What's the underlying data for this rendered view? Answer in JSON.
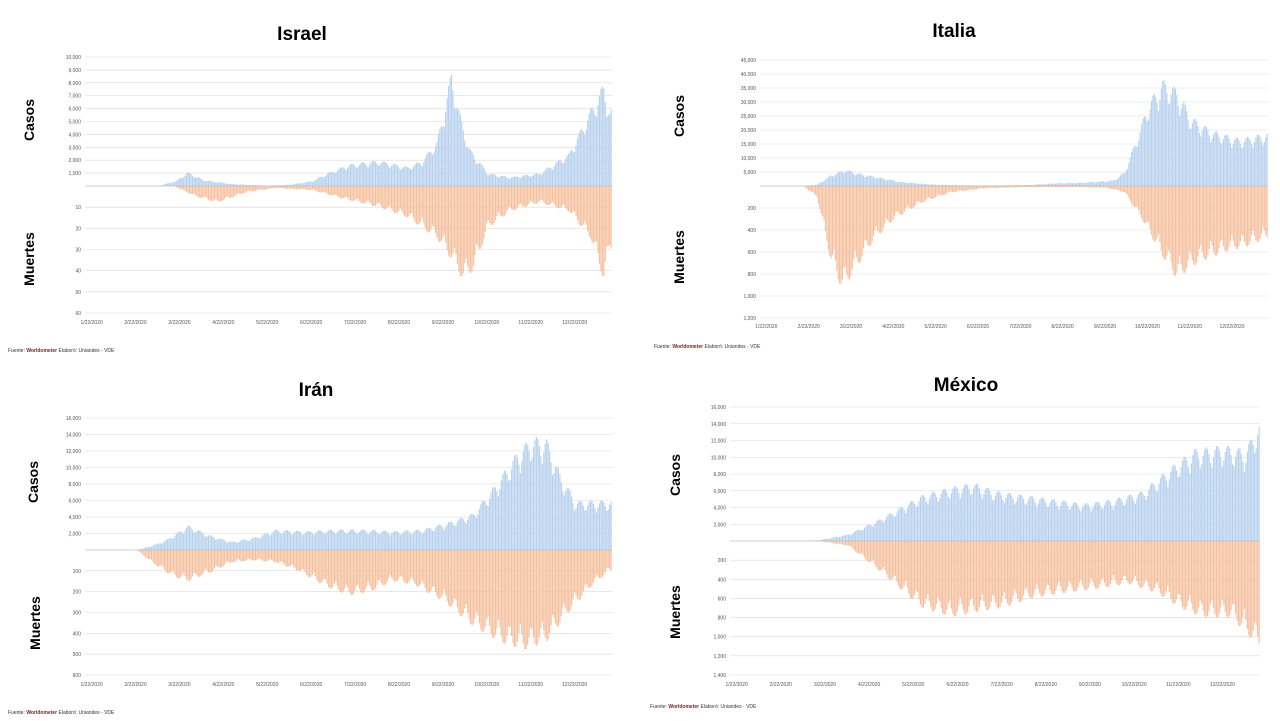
{
  "source": {
    "prefix": "Fuente:",
    "site": "Worldometer",
    "credit": "Elaboró: Uniandes - VDE"
  },
  "chart_data": [
    {
      "type": "bar",
      "title": "Israel",
      "ylabel_top": "Casos",
      "ylabel_bottom": "Muertes",
      "series": [
        {
          "name": "Casos"
        },
        {
          "name": "Muertes"
        }
      ],
      "x_ticks": [
        "1/22/2020",
        "2/22/2020",
        "3/22/2020",
        "4/22/2020",
        "5/22/2020",
        "6/22/2020",
        "7/22/2020",
        "8/22/2020",
        "9/22/2020",
        "10/22/2020",
        "11/22/2020",
        "12/22/2020"
      ],
      "cases_ticks": [
        "1,000",
        "2,000",
        "3,000",
        "4,000",
        "5,000",
        "6,000",
        "7,000",
        "8,000",
        "9,000",
        "10,000"
      ],
      "deaths_ticks": [
        "10",
        "20",
        "30",
        "40",
        "50",
        "60"
      ],
      "cases_max": 10000,
      "deaths_max": 60,
      "cases_keys": [
        [
          0,
          0
        ],
        [
          50,
          10
        ],
        [
          62,
          400
        ],
        [
          70,
          1100
        ],
        [
          80,
          500
        ],
        [
          100,
          150
        ],
        [
          125,
          30
        ],
        [
          140,
          100
        ],
        [
          155,
          400
        ],
        [
          165,
          1000
        ],
        [
          180,
          1700
        ],
        [
          200,
          2000
        ],
        [
          220,
          1500
        ],
        [
          230,
          2000
        ],
        [
          240,
          3500
        ],
        [
          245,
          6000
        ],
        [
          250,
          9000
        ],
        [
          255,
          6000
        ],
        [
          262,
          3000
        ],
        [
          275,
          1000
        ],
        [
          290,
          700
        ],
        [
          310,
          1000
        ],
        [
          330,
          2500
        ],
        [
          345,
          6000
        ],
        [
          354,
          8000
        ],
        [
          358,
          6000
        ]
      ],
      "deaths_keys": [
        [
          0,
          0
        ],
        [
          60,
          0
        ],
        [
          75,
          5
        ],
        [
          90,
          8
        ],
        [
          110,
          3
        ],
        [
          130,
          1
        ],
        [
          155,
          2
        ],
        [
          175,
          6
        ],
        [
          200,
          10
        ],
        [
          220,
          15
        ],
        [
          240,
          25
        ],
        [
          250,
          35
        ],
        [
          258,
          45
        ],
        [
          265,
          40
        ],
        [
          275,
          20
        ],
        [
          290,
          12
        ],
        [
          310,
          8
        ],
        [
          330,
          12
        ],
        [
          345,
          25
        ],
        [
          354,
          45
        ],
        [
          358,
          30
        ]
      ]
    },
    {
      "type": "bar",
      "title": "Italia",
      "ylabel_top": "Casos",
      "ylabel_bottom": "Muertes",
      "series": [
        {
          "name": "Casos"
        },
        {
          "name": "Muertes"
        }
      ],
      "x_ticks": [
        "1/22/2020",
        "2/22/2020",
        "3/22/2020",
        "4/22/2020",
        "5/22/2020",
        "6/22/2020",
        "7/22/2020",
        "8/22/2020",
        "9/22/2020",
        "10/22/2020",
        "11/22/2020",
        "12/22/2020"
      ],
      "cases_ticks": [
        "5,000",
        "10,000",
        "15,000",
        "20,000",
        "25,000",
        "30,000",
        "35,000",
        "40,000",
        "45,000"
      ],
      "deaths_ticks": [
        "200",
        "400",
        "600",
        "800",
        "1,000",
        "1,200"
      ],
      "cases_max": 45000,
      "deaths_max": 1200,
      "cases_keys": [
        [
          0,
          0
        ],
        [
          30,
          0
        ],
        [
          40,
          500
        ],
        [
          50,
          4000
        ],
        [
          60,
          6000
        ],
        [
          70,
          4500
        ],
        [
          85,
          3000
        ],
        [
          100,
          1500
        ],
        [
          120,
          600
        ],
        [
          140,
          300
        ],
        [
          160,
          200
        ],
        [
          190,
          400
        ],
        [
          210,
          1000
        ],
        [
          230,
          1300
        ],
        [
          250,
          2000
        ],
        [
          258,
          5000
        ],
        [
          265,
          15000
        ],
        [
          275,
          30000
        ],
        [
          285,
          38000
        ],
        [
          295,
          35000
        ],
        [
          305,
          25000
        ],
        [
          320,
          20000
        ],
        [
          340,
          17000
        ],
        [
          358,
          19000
        ]
      ],
      "deaths_keys": [
        [
          0,
          0
        ],
        [
          30,
          0
        ],
        [
          40,
          100
        ],
        [
          50,
          700
        ],
        [
          58,
          950
        ],
        [
          68,
          750
        ],
        [
          80,
          500
        ],
        [
          95,
          300
        ],
        [
          115,
          150
        ],
        [
          135,
          60
        ],
        [
          160,
          20
        ],
        [
          190,
          10
        ],
        [
          225,
          10
        ],
        [
          245,
          15
        ],
        [
          258,
          60
        ],
        [
          270,
          300
        ],
        [
          285,
          650
        ],
        [
          295,
          850
        ],
        [
          310,
          700
        ],
        [
          330,
          600
        ],
        [
          345,
          550
        ],
        [
          358,
          480
        ]
      ]
    },
    {
      "type": "bar",
      "title": "Irán",
      "ylabel_top": "Casos",
      "ylabel_bottom": "Muertes",
      "series": [
        {
          "name": "Casos"
        },
        {
          "name": "Muertes"
        }
      ],
      "x_ticks": [
        "1/22/2020",
        "2/22/2020",
        "3/22/2020",
        "4/22/2020",
        "5/22/2020",
        "6/22/2020",
        "7/22/2020",
        "8/22/2020",
        "9/22/2020",
        "10/22/2020",
        "11/22/2020",
        "12/22/2020"
      ],
      "cases_ticks": [
        "2,000",
        "4,000",
        "6,000",
        "8,000",
        "10,000",
        "12,000",
        "14,000",
        "16,000"
      ],
      "deaths_ticks": [
        "100",
        "200",
        "300",
        "400",
        "500",
        "600"
      ],
      "cases_max": 16000,
      "deaths_max": 600,
      "cases_keys": [
        [
          0,
          0
        ],
        [
          35,
          0
        ],
        [
          45,
          500
        ],
        [
          55,
          1200
        ],
        [
          70,
          3000
        ],
        [
          85,
          1800
        ],
        [
          100,
          1000
        ],
        [
          115,
          1500
        ],
        [
          130,
          2500
        ],
        [
          150,
          2300
        ],
        [
          170,
          2500
        ],
        [
          190,
          2500
        ],
        [
          210,
          2300
        ],
        [
          230,
          2500
        ],
        [
          250,
          3500
        ],
        [
          265,
          4500
        ],
        [
          280,
          8000
        ],
        [
          295,
          12000
        ],
        [
          305,
          13800
        ],
        [
          315,
          13500
        ],
        [
          325,
          9000
        ],
        [
          335,
          6000
        ],
        [
          350,
          6000
        ],
        [
          358,
          6000
        ]
      ],
      "deaths_keys": [
        [
          0,
          0
        ],
        [
          35,
          0
        ],
        [
          45,
          60
        ],
        [
          60,
          130
        ],
        [
          70,
          150
        ],
        [
          85,
          110
        ],
        [
          100,
          60
        ],
        [
          115,
          50
        ],
        [
          130,
          60
        ],
        [
          145,
          100
        ],
        [
          165,
          180
        ],
        [
          180,
          220
        ],
        [
          195,
          200
        ],
        [
          210,
          150
        ],
        [
          225,
          170
        ],
        [
          245,
          250
        ],
        [
          265,
          370
        ],
        [
          285,
          450
        ],
        [
          300,
          480
        ],
        [
          315,
          440
        ],
        [
          330,
          300
        ],
        [
          345,
          180
        ],
        [
          358,
          100
        ]
      ]
    },
    {
      "type": "bar",
      "title": "México",
      "ylabel_top": "Casos",
      "ylabel_bottom": "Muertes",
      "series": [
        {
          "name": "Casos"
        },
        {
          "name": "Muertes"
        }
      ],
      "x_ticks": [
        "1/22/2020",
        "2/22/2020",
        "3/22/2020",
        "4/22/2020",
        "5/22/2020",
        "6/22/2020",
        "7/22/2020",
        "8/22/2020",
        "9/22/2020",
        "10/22/2020",
        "11/22/2020",
        "12/22/2020"
      ],
      "cases_ticks": [
        "2,000",
        "4,000",
        "6,000",
        "8,000",
        "10,000",
        "12,000",
        "14,000",
        "16,000"
      ],
      "deaths_ticks": [
        "200",
        "400",
        "600",
        "800",
        "1,000",
        "1,200",
        "1,400"
      ],
      "cases_max": 16000,
      "deaths_max": 1400,
      "cases_keys": [
        [
          0,
          0
        ],
        [
          40,
          0
        ],
        [
          60,
          100
        ],
        [
          80,
          800
        ],
        [
          100,
          2500
        ],
        [
          115,
          4000
        ],
        [
          130,
          5500
        ],
        [
          150,
          6500
        ],
        [
          165,
          7000
        ],
        [
          180,
          6000
        ],
        [
          200,
          5500
        ],
        [
          220,
          5000
        ],
        [
          240,
          4500
        ],
        [
          260,
          5000
        ],
        [
          280,
          6000
        ],
        [
          300,
          9000
        ],
        [
          315,
          11000
        ],
        [
          335,
          11500
        ],
        [
          350,
          11000
        ],
        [
          358,
          14000
        ]
      ],
      "deaths_keys": [
        [
          0,
          0
        ],
        [
          60,
          0
        ],
        [
          80,
          50
        ],
        [
          100,
          300
        ],
        [
          115,
          500
        ],
        [
          130,
          700
        ],
        [
          150,
          800
        ],
        [
          165,
          750
        ],
        [
          185,
          700
        ],
        [
          205,
          600
        ],
        [
          225,
          550
        ],
        [
          250,
          500
        ],
        [
          270,
          450
        ],
        [
          290,
          550
        ],
        [
          305,
          700
        ],
        [
          320,
          800
        ],
        [
          340,
          800
        ],
        [
          352,
          1000
        ],
        [
          358,
          1100
        ]
      ]
    }
  ],
  "colors": {
    "cases": "#b7d1ee",
    "deaths": "#f5c09e",
    "grid": "#d9d9d9",
    "axis": "#bfbfbf"
  }
}
